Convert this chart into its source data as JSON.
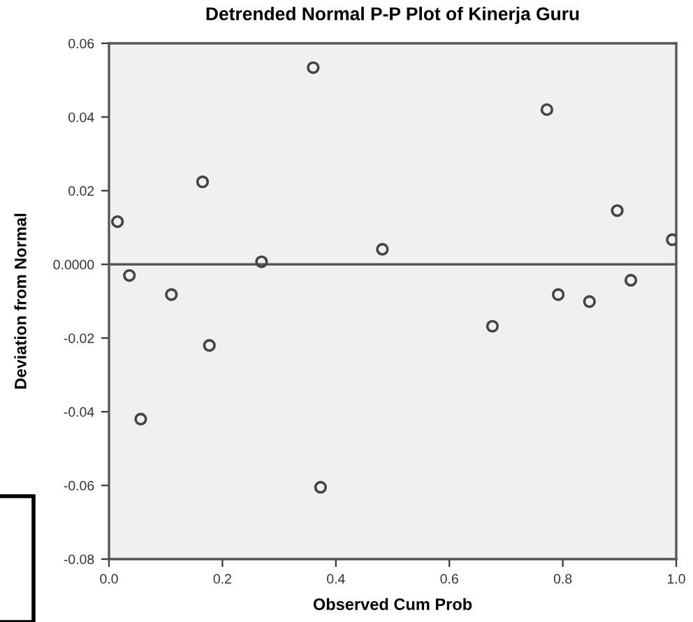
{
  "chart_data": {
    "type": "scatter",
    "title": "Detrended Normal P-P Plot of Kinerja Guru",
    "xlabel": "Observed Cum Prob",
    "ylabel": "Deviation from Normal",
    "x": [
      0.015,
      0.036,
      0.11,
      0.165,
      0.177,
      0.056,
      0.269,
      0.36,
      0.373,
      0.482,
      0.676,
      0.772,
      0.792,
      0.847,
      0.896,
      0.92,
      0.993
    ],
    "series": [
      {
        "color": "#444444",
        "values": [
          0.0116,
          -0.003,
          -0.0082,
          0.0224,
          -0.022,
          -0.042,
          0.0007,
          0.0534,
          -0.0605,
          0.0041,
          -0.0168,
          0.042,
          -0.0082,
          -0.0101,
          0.0146,
          -0.0043,
          0.0067
        ]
      }
    ],
    "marker": "circle",
    "xlim": [
      0.0,
      1.0
    ],
    "xticks": [
      {
        "value": 0.0,
        "label": "0.0"
      },
      0.2,
      0.4,
      0.6,
      0.8,
      {
        "value": 1.0,
        "label": "1.0"
      }
    ],
    "ylim": [
      -0.08,
      0.06
    ],
    "yticks": [
      -0.08,
      -0.06,
      -0.04,
      -0.02,
      {
        "value": 0.0,
        "label": "0.0000"
      },
      0.02,
      0.04,
      0.06
    ],
    "ref_lines": [
      {
        "axis": "y",
        "value": 0.0,
        "color": "#555555"
      }
    ],
    "grid": false,
    "legend": false
  }
}
